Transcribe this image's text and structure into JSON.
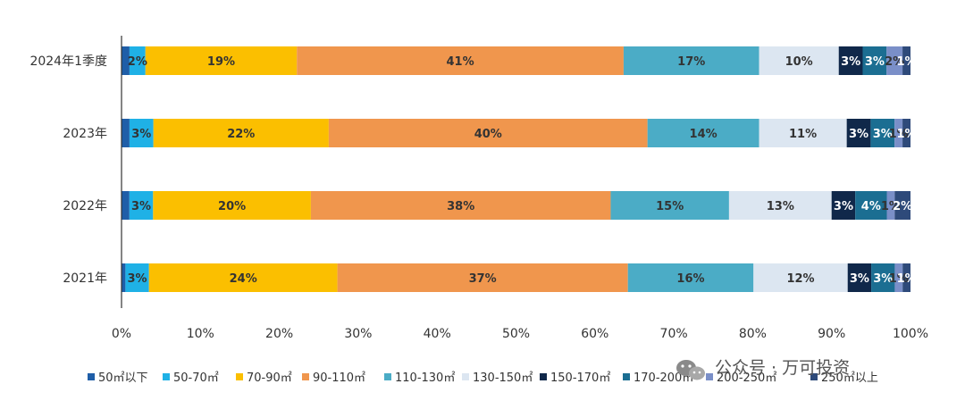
{
  "chart_data": {
    "type": "bar",
    "orientation": "horizontal",
    "stacked": "percent",
    "title": "",
    "xlabel": "",
    "ylabel": "",
    "xlim": [
      0,
      100
    ],
    "x_ticks": [
      "0%",
      "10%",
      "20%",
      "30%",
      "40%",
      "50%",
      "60%",
      "70%",
      "80%",
      "90%",
      "100%"
    ],
    "categories": [
      "2024年1季度",
      "2023年",
      "2022年",
      "2021年"
    ],
    "series": [
      {
        "name": "50㎡以下",
        "color": "#1f5ea8",
        "values": [
          1,
          1,
          1,
          0.5
        ],
        "labels": [
          "",
          "",
          "",
          ""
        ]
      },
      {
        "name": "50-70㎡",
        "color": "#1fb1e6",
        "values": [
          2,
          3,
          3,
          3
        ],
        "labels": [
          "2%",
          "3%",
          "3%",
          "3%"
        ]
      },
      {
        "name": "70-90㎡",
        "color": "#fbbf00",
        "values": [
          19,
          22,
          20,
          24
        ],
        "labels": [
          "19%",
          "22%",
          "20%",
          "24%"
        ]
      },
      {
        "name": "90-110㎡",
        "color": "#f0964d",
        "values": [
          41,
          40,
          38,
          37
        ],
        "labels": [
          "41%",
          "40%",
          "38%",
          "37%"
        ]
      },
      {
        "name": "110-130㎡",
        "color": "#4bacc6",
        "values": [
          17,
          14,
          15,
          16
        ],
        "labels": [
          "17%",
          "14%",
          "15%",
          "16%"
        ]
      },
      {
        "name": "130-150㎡",
        "color": "#dce6f1",
        "values": [
          10,
          11,
          13,
          12
        ],
        "labels": [
          "10%",
          "11%",
          "13%",
          "12%"
        ]
      },
      {
        "name": "150-170㎡",
        "color": "#10284a",
        "values": [
          3,
          3,
          3,
          3
        ],
        "labels": [
          "3%",
          "3%",
          "3%",
          "3%"
        ]
      },
      {
        "name": "170-200㎡",
        "color": "#1b6e92",
        "values": [
          3,
          3,
          4,
          3
        ],
        "labels": [
          "3%",
          "3%",
          "4%",
          "3%"
        ]
      },
      {
        "name": "200-250㎡",
        "color": "#7a8fc8",
        "values": [
          2,
          1,
          1,
          1
        ],
        "labels": [
          "2%",
          "1%",
          "1%",
          "1%"
        ]
      },
      {
        "name": "250㎡以上",
        "color": "#2e4a7a",
        "values": [
          1,
          1,
          2,
          1
        ],
        "labels": [
          "1%",
          "1%",
          "2%",
          "1%"
        ]
      }
    ],
    "legend_position": "bottom",
    "grid": false
  },
  "watermark": {
    "text": "公众号 · 万可投资"
  }
}
